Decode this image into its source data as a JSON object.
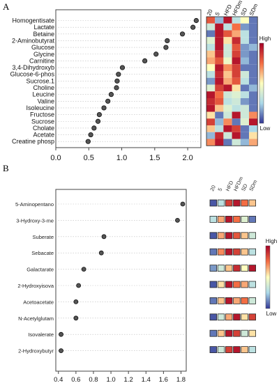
{
  "panels": [
    "A",
    "B"
  ],
  "colors": {
    "high": "#a50026",
    "mid_high": "#f46d43",
    "mid": "#ffffbf",
    "mid_low": "#abd9e9",
    "low": "#313695"
  },
  "chart_data": [
    {
      "type": "scatter",
      "panel": "A",
      "title": "",
      "xlabel": "",
      "ylabel": "",
      "xlim": [
        0.0,
        2.2
      ],
      "xticks": [
        "0.0",
        "0.5",
        "1.0",
        "1.5",
        "2.0"
      ],
      "grid": "horizontal dotted",
      "categories": [
        "Homogentisate",
        "Lactate",
        "Betaine",
        "2-Aminobutyrat",
        "Glucose",
        "Glycine",
        "Carnitine",
        "3,4-Dihydroxyb",
        "Glucose-6-phos",
        "Sucrose.1",
        "Choline",
        "Leucine",
        "Valine",
        "Isoleucine",
        "Fructose",
        "Sucrose",
        "Cholate",
        "Acetate",
        "Creatine phosp"
      ],
      "values": [
        2.13,
        2.08,
        1.92,
        1.69,
        1.67,
        1.52,
        1.35,
        1.01,
        0.95,
        0.93,
        0.92,
        0.84,
        0.79,
        0.73,
        0.66,
        0.64,
        0.58,
        0.53,
        0.49
      ],
      "heatmap": {
        "columns": [
          "20",
          "5",
          "HFD",
          "HFDm",
          "SD",
          "SDm"
        ],
        "legend": {
          "high": "High",
          "low": "Low"
        },
        "rows": [
          [
            0.8,
            0.2,
            0.95,
            0.3,
            0.5,
            0.1
          ],
          [
            0.35,
            0.95,
            0.3,
            0.75,
            0.15,
            0.1
          ],
          [
            0.1,
            0.95,
            0.8,
            0.65,
            0.3,
            0.1
          ],
          [
            0.4,
            0.95,
            0.55,
            0.9,
            0.3,
            0.1
          ],
          [
            0.3,
            0.95,
            0.35,
            0.8,
            0.15,
            0.2
          ],
          [
            0.6,
            0.9,
            0.35,
            0.85,
            0.15,
            0.1
          ],
          [
            0.65,
            0.8,
            0.45,
            0.95,
            0.2,
            0.1
          ],
          [
            0.5,
            0.95,
            0.7,
            0.85,
            0.1,
            0.1
          ],
          [
            0.3,
            0.9,
            0.6,
            0.85,
            0.35,
            0.1
          ],
          [
            0.15,
            0.95,
            0.65,
            0.8,
            0.3,
            0.1
          ],
          [
            0.4,
            0.85,
            0.95,
            0.55,
            0.1,
            0.2
          ],
          [
            0.95,
            0.75,
            0.35,
            0.4,
            0.3,
            0.1
          ],
          [
            0.9,
            0.8,
            0.3,
            0.35,
            0.15,
            0.1
          ],
          [
            0.95,
            0.6,
            0.4,
            0.3,
            0.35,
            0.1
          ],
          [
            0.55,
            0.1,
            0.35,
            0.95,
            0.35,
            0.7
          ],
          [
            0.85,
            0.2,
            0.7,
            0.1,
            0.4,
            0.95
          ],
          [
            0.6,
            0.3,
            0.95,
            0.85,
            0.1,
            0.25
          ],
          [
            0.2,
            0.9,
            0.35,
            0.95,
            0.1,
            0.55
          ],
          [
            0.7,
            0.95,
            0.1,
            0.35,
            0.2,
            0.65
          ]
        ]
      }
    },
    {
      "type": "scatter",
      "panel": "B",
      "title": "",
      "xlabel": "",
      "ylabel": "",
      "xlim": [
        0.37,
        1.86
      ],
      "xticks": [
        "0.4",
        "0.6",
        "0.8",
        "1.0",
        "1.2",
        "1.4",
        "1.6",
        "1.8"
      ],
      "grid": "horizontal dotted",
      "categories": [
        "5-Aminopentano",
        "3-Hydroxy-3-me",
        "Suberate",
        "Sebacate",
        "Galactarate",
        "2-Hydroxyisova",
        "Acetoacetate",
        "N-Acetylglutam",
        "Isovalerate",
        "2-Hydroxybutyr"
      ],
      "values": [
        1.82,
        1.76,
        0.92,
        0.89,
        0.69,
        0.63,
        0.6,
        0.6,
        0.43,
        0.43
      ],
      "heatmap": {
        "columns": [
          "20",
          "5",
          "HFD",
          "HFDm",
          "SD",
          "SDm"
        ],
        "legend": {
          "high": "High",
          "low": "Low"
        },
        "rows": [
          [
            0.05,
            0.3,
            0.85,
            0.95,
            0.75,
            0.6
          ],
          [
            0.3,
            0.65,
            0.95,
            0.75,
            0.4,
            0.1
          ],
          [
            0.05,
            0.65,
            0.95,
            0.8,
            0.6,
            0.35
          ],
          [
            0.1,
            0.7,
            0.95,
            0.85,
            0.6,
            0.3
          ],
          [
            0.15,
            0.35,
            0.6,
            0.9,
            0.5,
            0.95
          ],
          [
            0.05,
            0.55,
            0.95,
            0.75,
            0.65,
            0.3
          ],
          [
            0.1,
            0.6,
            0.95,
            0.65,
            0.75,
            0.35
          ],
          [
            0.05,
            0.35,
            0.65,
            0.95,
            0.55,
            0.85
          ],
          [
            0.1,
            0.6,
            0.95,
            0.85,
            0.35,
            0.55
          ],
          [
            0.05,
            0.35,
            0.85,
            0.95,
            0.6,
            0.3
          ]
        ]
      }
    }
  ]
}
